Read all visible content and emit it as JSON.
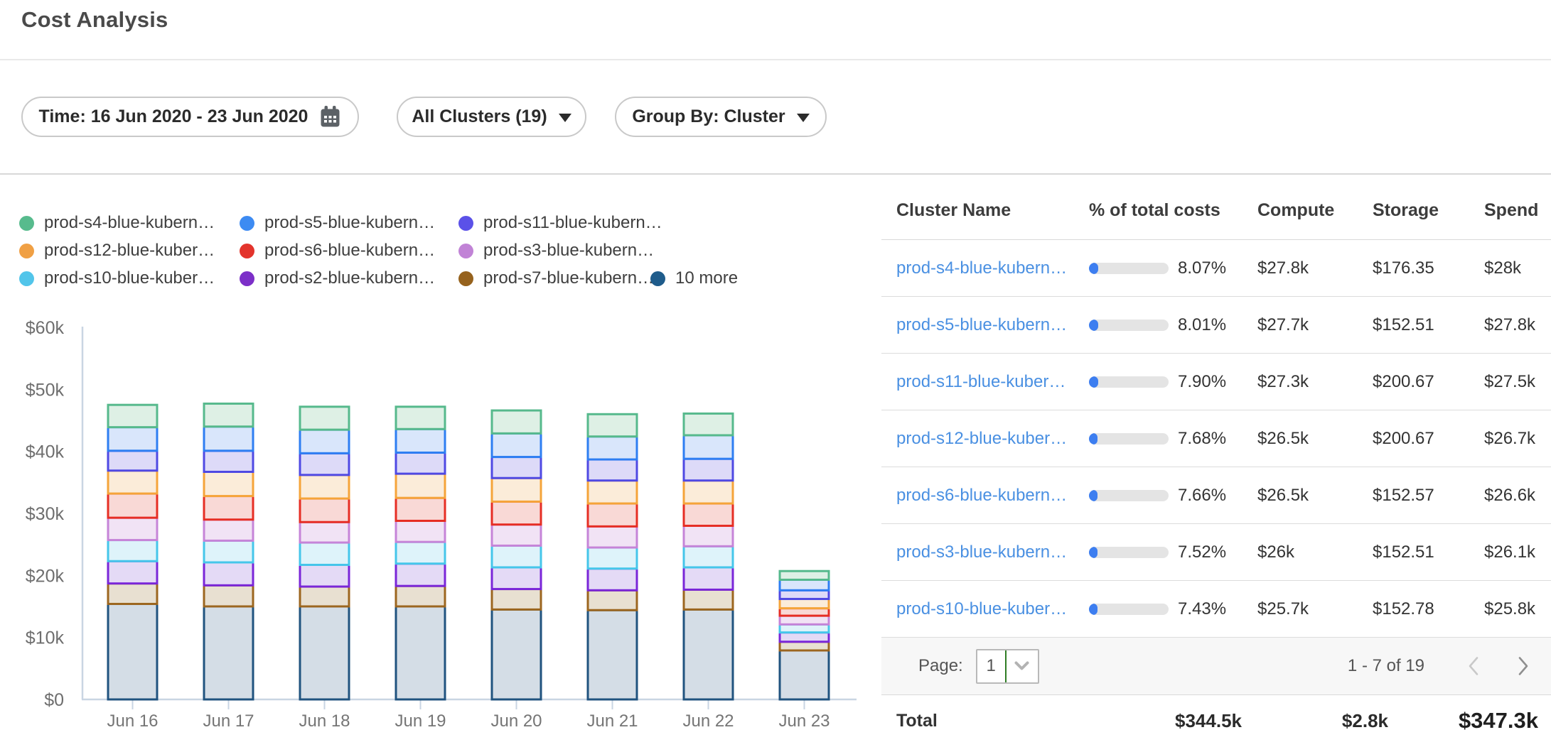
{
  "page": {
    "title": "Cost Analysis"
  },
  "filters": {
    "time": {
      "label": "Time: 16 Jun 2020 - 23 Jun 2020",
      "icon": "calendar-icon"
    },
    "clusters": {
      "label": "All Clusters (19)",
      "icon": "caret-down-icon"
    },
    "group_by": {
      "label": "Group By: Cluster",
      "icon": "caret-down-icon"
    }
  },
  "chart_data": {
    "type": "bar",
    "stacked": true,
    "title": "",
    "x": [
      "Jun 16",
      "Jun 17",
      "Jun 18",
      "Jun 19",
      "Jun 20",
      "Jun 21",
      "Jun 22",
      "Jun 23"
    ],
    "y_axis": {
      "values": [
        0,
        10,
        20,
        30,
        40,
        50,
        60
      ],
      "labels": [
        "$0",
        "$10k",
        "$20k",
        "$30k",
        "$40k",
        "$50k",
        "$60k"
      ]
    },
    "ylim_k": [
      0,
      60
    ],
    "unit": "USD thousands per day",
    "grid": false,
    "legend_position": "top",
    "series": [
      {
        "id": "more",
        "label": "10 more",
        "dot": "#1f5c8b",
        "stroke": "#20537f",
        "fill": "#d4dde6",
        "values": [
          15.4,
          15.0,
          15.0,
          15.0,
          14.5,
          14.4,
          14.5,
          7.9
        ]
      },
      {
        "id": "s7",
        "label": "prod-s7-blue-kubern…",
        "dot": "#96621d",
        "stroke": "#9c661f",
        "fill": "#e8e0d1",
        "values": [
          3.3,
          3.4,
          3.2,
          3.3,
          3.3,
          3.2,
          3.2,
          1.4
        ]
      },
      {
        "id": "s2",
        "label": "prod-s2-blue-kubern…",
        "dot": "#7c2fc8",
        "stroke": "#7a26d8",
        "fill": "#e4daf6",
        "values": [
          3.6,
          3.7,
          3.5,
          3.6,
          3.5,
          3.5,
          3.6,
          1.5
        ]
      },
      {
        "id": "s10",
        "label": "prod-s10-blue-kuber…",
        "dot": "#52c5ea",
        "stroke": "#45c6ea",
        "fill": "#def3fa",
        "values": [
          3.4,
          3.5,
          3.6,
          3.5,
          3.5,
          3.4,
          3.4,
          1.3
        ]
      },
      {
        "id": "s3",
        "label": "prod-s3-blue-kubern…",
        "dot": "#c183d6",
        "stroke": "#c684d8",
        "fill": "#f1e3f5",
        "values": [
          3.6,
          3.4,
          3.3,
          3.4,
          3.4,
          3.4,
          3.3,
          1.4
        ]
      },
      {
        "id": "s6",
        "label": "prod-s6-blue-kubern…",
        "dot": "#e3342c",
        "stroke": "#e62e24",
        "fill": "#f9d9d6",
        "values": [
          3.9,
          3.8,
          3.8,
          3.7,
          3.7,
          3.7,
          3.6,
          1.2
        ]
      },
      {
        "id": "s12",
        "label": "prod-s12-blue-kuber…",
        "dot": "#f0a044",
        "stroke": "#f5a43a",
        "fill": "#fbecd9",
        "values": [
          3.7,
          3.9,
          3.8,
          3.9,
          3.8,
          3.7,
          3.7,
          1.5
        ]
      },
      {
        "id": "s11",
        "label": "prod-s11-blue-kubern…",
        "dot": "#5b51e8",
        "stroke": "#4f49e3",
        "fill": "#dddaf8",
        "values": [
          3.2,
          3.4,
          3.5,
          3.4,
          3.4,
          3.4,
          3.5,
          1.4
        ]
      },
      {
        "id": "s5",
        "label": "prod-s5-blue-kubern…",
        "dot": "#3d8bf2",
        "stroke": "#2e7ef2",
        "fill": "#d9e6fb",
        "values": [
          3.8,
          3.9,
          3.8,
          3.8,
          3.8,
          3.7,
          3.8,
          1.7
        ]
      },
      {
        "id": "s4",
        "label": "prod-s4-blue-kubern…",
        "dot": "#57bb8d",
        "stroke": "#56b98c",
        "fill": "#def0e5",
        "values": [
          3.6,
          3.7,
          3.7,
          3.6,
          3.7,
          3.6,
          3.5,
          1.4
        ]
      }
    ],
    "legend_order": [
      "s4",
      "s5",
      "s11",
      "s12",
      "s6",
      "s3",
      "s10",
      "s2",
      "s7",
      "more"
    ]
  },
  "table": {
    "columns": [
      "Cluster Name",
      "% of total costs",
      "Compute",
      "Storage",
      "Spend"
    ],
    "rows": [
      {
        "name": "prod-s4-blue-kubern…",
        "pct": "8.07%",
        "pct_value": 8.07,
        "compute": "$27.8k",
        "storage": "$176.35",
        "spend": "$28k"
      },
      {
        "name": "prod-s5-blue-kubern…",
        "pct": "8.01%",
        "pct_value": 8.01,
        "compute": "$27.7k",
        "storage": "$152.51",
        "spend": "$27.8k"
      },
      {
        "name": "prod-s11-blue-kuber…",
        "pct": "7.90%",
        "pct_value": 7.9,
        "compute": "$27.3k",
        "storage": "$200.67",
        "spend": "$27.5k"
      },
      {
        "name": "prod-s12-blue-kuber…",
        "pct": "7.68%",
        "pct_value": 7.68,
        "compute": "$26.5k",
        "storage": "$200.67",
        "spend": "$26.7k"
      },
      {
        "name": "prod-s6-blue-kubern…",
        "pct": "7.66%",
        "pct_value": 7.66,
        "compute": "$26.5k",
        "storage": "$152.57",
        "spend": "$26.6k"
      },
      {
        "name": "prod-s3-blue-kubern…",
        "pct": "7.52%",
        "pct_value": 7.52,
        "compute": "$26k",
        "storage": "$152.51",
        "spend": "$26.1k"
      },
      {
        "name": "prod-s10-blue-kuber…",
        "pct": "7.43%",
        "pct_value": 7.43,
        "compute": "$25.7k",
        "storage": "$152.78",
        "spend": "$25.8k"
      }
    ],
    "pagination": {
      "page_label": "Page:",
      "page_value": "1",
      "range": "1 - 7 of 19"
    },
    "totals": {
      "label": "Total",
      "compute": "$344.5k",
      "storage": "$2.8k",
      "spend": "$347.3k"
    }
  },
  "colors": {
    "link": "#4a90e2",
    "progress_fill": "#3d7ef0",
    "progress_track": "#e4e4e4",
    "axis": "#c9d5e3",
    "page_divider": "#2f7d25"
  }
}
